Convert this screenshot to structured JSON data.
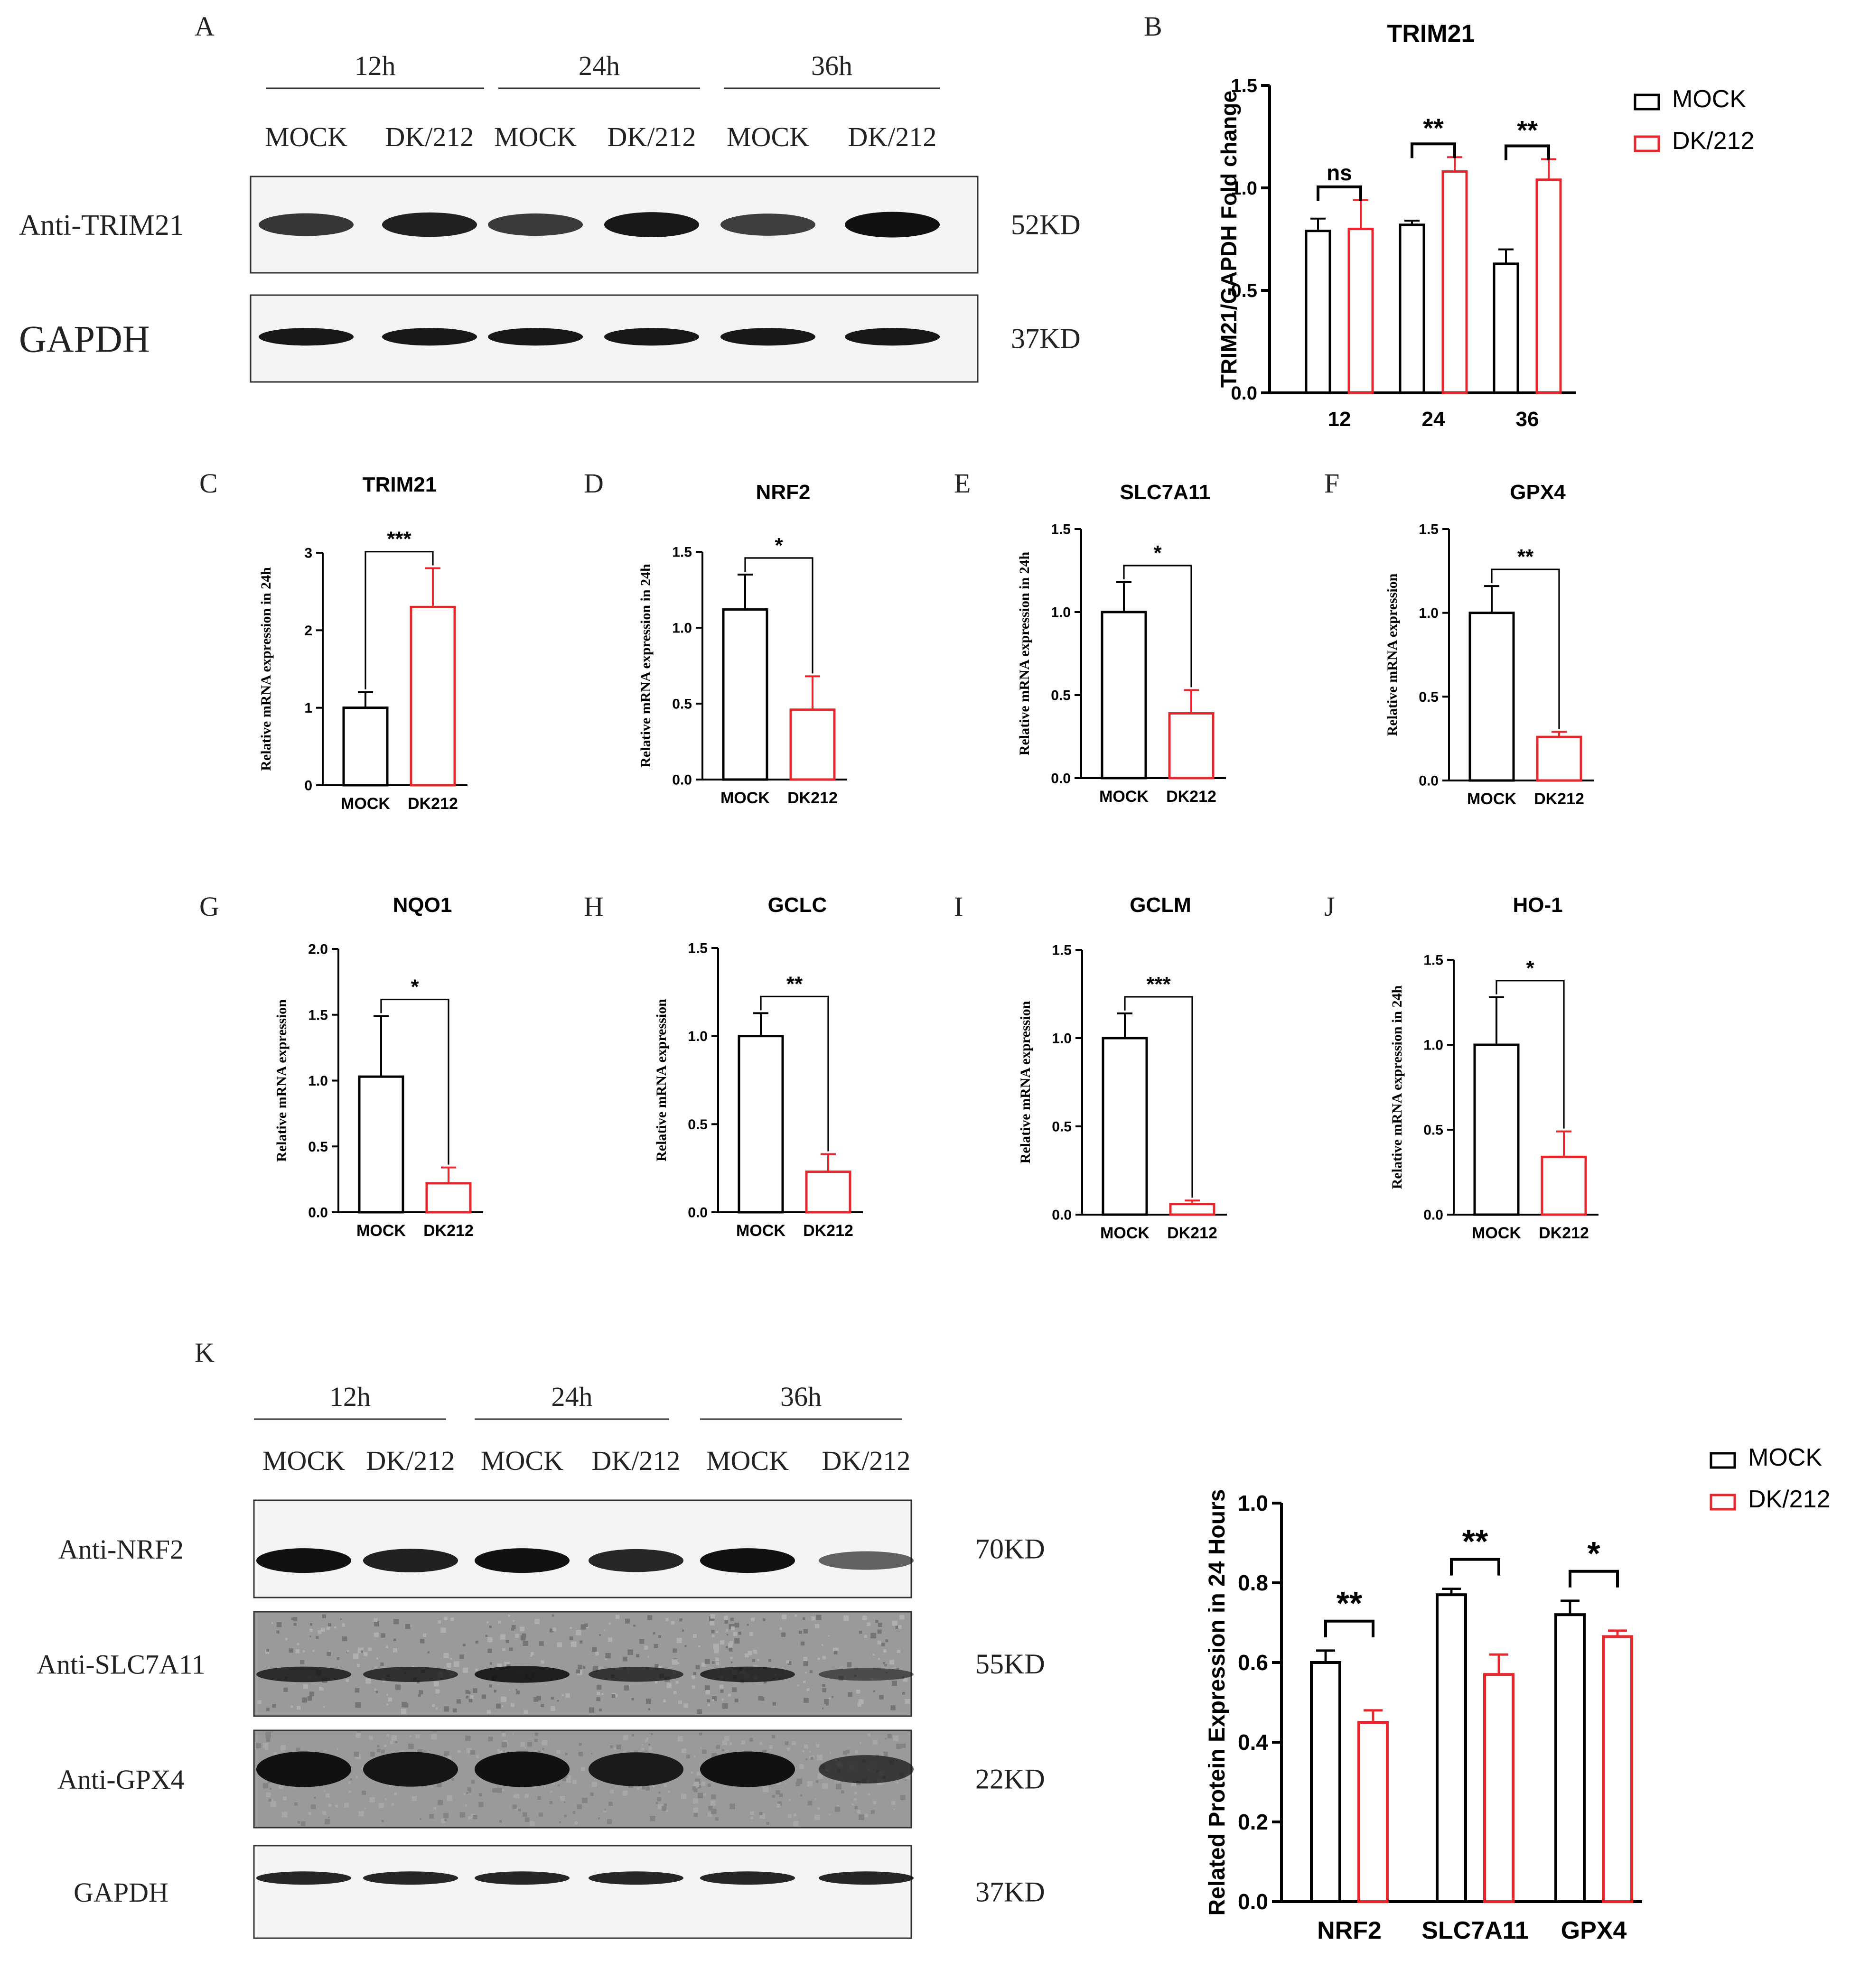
{
  "colors": {
    "mock": "#000000",
    "dk": "#e8262b",
    "blot_dark": "#111111"
  },
  "blot_a": {
    "letter": "A",
    "times": [
      "12h",
      "24h",
      "36h"
    ],
    "lanes": [
      "MOCK",
      "DK/212",
      "MOCK",
      "DK/212",
      "MOCK",
      "DK/212"
    ],
    "rows": [
      {
        "label": "Anti-TRIM21",
        "size": "52KD",
        "intensity": [
          0.75,
          0.9,
          0.72,
          0.95,
          0.7,
          1.0
        ],
        "noise": 0.04
      },
      {
        "label": "GAPDH",
        "size": "37KD",
        "intensity": [
          0.95,
          0.95,
          0.95,
          0.95,
          0.95,
          0.95
        ],
        "noise": 0.0
      }
    ]
  },
  "blot_k": {
    "letter": "K",
    "times": [
      "12h",
      "24h",
      "36h"
    ],
    "lanes": [
      "MOCK",
      "DK/212",
      "MOCK",
      "DK/212",
      "MOCK",
      "DK/212"
    ],
    "rows": [
      {
        "label": "Anti-NRF2",
        "size": "70KD",
        "intensity": [
          1.0,
          0.9,
          1.0,
          0.85,
          1.0,
          0.45
        ],
        "noise": 0.05
      },
      {
        "label": "Anti-SLC7A11",
        "size": "55KD",
        "intensity": [
          0.7,
          0.65,
          0.85,
          0.6,
          0.7,
          0.35
        ],
        "noise": 0.35
      },
      {
        "label": "Anti-GPX4",
        "size": "22KD",
        "intensity": [
          1.0,
          0.95,
          1.0,
          0.9,
          1.0,
          0.55
        ],
        "noise": 0.22
      },
      {
        "label": "GAPDH",
        "size": "37KD",
        "intensity": [
          0.85,
          0.85,
          0.85,
          0.85,
          0.85,
          0.85
        ],
        "noise": 0.04
      }
    ]
  },
  "chart_data": [
    {
      "panel": "B",
      "type": "bar",
      "title": "TRIM21",
      "ylabel": "TRIM21/GAPDH Fold change",
      "xlabel": "",
      "categories": [
        "12",
        "24",
        "36"
      ],
      "ylim": [
        0,
        1.5
      ],
      "yticks": [
        "0.0",
        "0.5",
        "1.0",
        "1.5"
      ],
      "series": [
        {
          "name": "MOCK",
          "values": [
            0.79,
            0.82,
            0.63
          ],
          "errors": [
            0.06,
            0.02,
            0.07
          ]
        },
        {
          "name": "DK/212",
          "values": [
            0.8,
            1.08,
            1.04
          ],
          "errors": [
            0.14,
            0.07,
            0.1
          ]
        }
      ],
      "significance": [
        "ns",
        "**",
        "**"
      ],
      "legend": "top-right"
    },
    {
      "panel": "C",
      "type": "bar",
      "title": "TRIM21",
      "ylabel": "Relative mRNA expression in 24h",
      "categories": [
        "MOCK",
        "DK212"
      ],
      "ylim": [
        0,
        3
      ],
      "yticks": [
        "0",
        "1",
        "2",
        "3"
      ],
      "values": [
        1.0,
        2.3
      ],
      "errors": [
        0.2,
        0.5
      ],
      "significance": "***"
    },
    {
      "panel": "D",
      "type": "bar",
      "title": "NRF2",
      "ylabel": "Relative mRNA expression in 24h",
      "categories": [
        "MOCK",
        "DK212"
      ],
      "ylim": [
        0,
        1.5
      ],
      "yticks": [
        "0.0",
        "0.5",
        "1.0",
        "1.5"
      ],
      "values": [
        1.12,
        0.46
      ],
      "errors": [
        0.23,
        0.22
      ],
      "significance": "*"
    },
    {
      "panel": "E",
      "type": "bar",
      "title": "SLC7A11",
      "ylabel": "Relative mRNA expression in 24h",
      "categories": [
        "MOCK",
        "DK212"
      ],
      "ylim": [
        0,
        1.5
      ],
      "yticks": [
        "0.0",
        "0.5",
        "1.0",
        "1.5"
      ],
      "values": [
        1.0,
        0.39
      ],
      "errors": [
        0.18,
        0.14
      ],
      "significance": "*"
    },
    {
      "panel": "F",
      "type": "bar",
      "title": "GPX4",
      "ylabel": "Relative mRNA expression",
      "categories": [
        "MOCK",
        "DK212"
      ],
      "ylim": [
        0,
        1.5
      ],
      "yticks": [
        "0.0",
        "0.5",
        "1.0",
        "1.5"
      ],
      "values": [
        1.0,
        0.26
      ],
      "errors": [
        0.16,
        0.03
      ],
      "significance": "**"
    },
    {
      "panel": "G",
      "type": "bar",
      "title": "NQO1",
      "ylabel": "Relative mRNA expression",
      "categories": [
        "MOCK",
        "DK212"
      ],
      "ylim": [
        0,
        2.0
      ],
      "yticks": [
        "0.0",
        "0.5",
        "1.0",
        "1.5",
        "2.0"
      ],
      "values": [
        1.03,
        0.22
      ],
      "errors": [
        0.46,
        0.12
      ],
      "significance": "*"
    },
    {
      "panel": "H",
      "type": "bar",
      "title": "GCLC",
      "ylabel": "Relative mRNA expression",
      "categories": [
        "MOCK",
        "DK212"
      ],
      "ylim": [
        0,
        1.5
      ],
      "yticks": [
        "0.0",
        "0.5",
        "1.0",
        "1.5"
      ],
      "values": [
        1.0,
        0.23
      ],
      "errors": [
        0.13,
        0.1
      ],
      "significance": "**"
    },
    {
      "panel": "I",
      "type": "bar",
      "title": "GCLM",
      "ylabel": "Relative mRNA expression",
      "categories": [
        "MOCK",
        "DK212"
      ],
      "ylim": [
        0,
        1.5
      ],
      "yticks": [
        "0.0",
        "0.5",
        "1.0",
        "1.5"
      ],
      "values": [
        1.0,
        0.06
      ],
      "errors": [
        0.14,
        0.02
      ],
      "significance": "***"
    },
    {
      "panel": "J",
      "type": "bar",
      "title": "HO-1",
      "ylabel": "Relative mRNA expression in 24h",
      "categories": [
        "MOCK",
        "DK212"
      ],
      "ylim": [
        0,
        1.5
      ],
      "yticks": [
        "0.0",
        "0.5",
        "1.0",
        "1.5"
      ],
      "values": [
        1.0,
        0.34
      ],
      "errors": [
        0.28,
        0.15
      ],
      "significance": "*"
    },
    {
      "panel": "K-chart",
      "type": "bar",
      "title": "",
      "ylabel": "Related Protein Expression in 24 Hours",
      "categories": [
        "NRF2",
        "SLC7A11",
        "GPX4"
      ],
      "ylim": [
        0,
        1.0
      ],
      "yticks": [
        "0.0",
        "0.2",
        "0.4",
        "0.6",
        "0.8",
        "1.0"
      ],
      "series": [
        {
          "name": "MOCK",
          "values": [
            0.6,
            0.77,
            0.72
          ],
          "errors": [
            0.03,
            0.015,
            0.035
          ]
        },
        {
          "name": "DK/212",
          "values": [
            0.45,
            0.57,
            0.665
          ],
          "errors": [
            0.03,
            0.05,
            0.015
          ]
        }
      ],
      "significance": [
        "**",
        "**",
        "*"
      ],
      "legend": "top-right"
    }
  ]
}
